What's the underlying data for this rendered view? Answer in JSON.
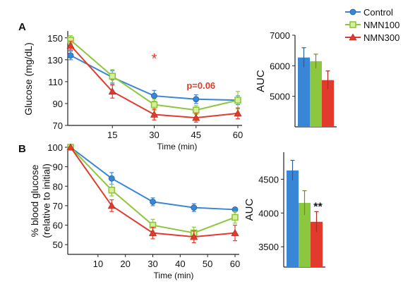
{
  "legend": [
    {
      "label": "Control",
      "color": "#3a86d6",
      "marker": "circle"
    },
    {
      "label": "NMN100",
      "color": "#8dc63f",
      "marker": "square"
    },
    {
      "label": "NMN300",
      "color": "#e23b2e",
      "marker": "triangle"
    }
  ],
  "chart_data": [
    {
      "type": "line",
      "panel_label": "A",
      "xlabel": "Time (min)",
      "ylabel": "Glucose (mg/dL)",
      "x": [
        0,
        15,
        30,
        45,
        60
      ],
      "x_ticks": [
        15,
        30,
        45,
        60
      ],
      "ylim": [
        70,
        155
      ],
      "y_ticks": [
        70,
        90,
        110,
        130,
        150
      ],
      "series": [
        {
          "name": "Control",
          "values": [
            134,
            114,
            97,
            94,
            93
          ],
          "errors": [
            4,
            6,
            5,
            4,
            4
          ]
        },
        {
          "name": "NMN100",
          "values": [
            148,
            115,
            89,
            84,
            93
          ],
          "errors": [
            4,
            6,
            5,
            4,
            8
          ]
        },
        {
          "name": "NMN300",
          "values": [
            143,
            101,
            80,
            77,
            81
          ],
          "errors": [
            4,
            6,
            5,
            4,
            5
          ]
        }
      ],
      "annotations": [
        {
          "text": "*",
          "color": "#e23b2e",
          "at_x": 30
        },
        {
          "text": "p=0.06",
          "color": "#e23b2e",
          "at_x": 45
        }
      ]
    },
    {
      "type": "bar",
      "ylabel": "AUC",
      "ylim": [
        4000,
        7000
      ],
      "y_ticks": [
        5000,
        6000,
        7000
      ],
      "categories": [
        "Control",
        "NMN100",
        "NMN300"
      ],
      "values": [
        6270,
        6150,
        5530
      ],
      "errors": [
        320,
        230,
        300
      ]
    },
    {
      "type": "line",
      "panel_label": "B",
      "xlabel": "Time (min)",
      "ylabel": "% blood glucose (relative to initial)",
      "x": [
        0,
        15,
        30,
        45,
        60
      ],
      "x_ticks": [
        10,
        20,
        30,
        40,
        50,
        60
      ],
      "ylim": [
        45,
        100
      ],
      "y_ticks": [
        50,
        60,
        70,
        80,
        90,
        100
      ],
      "series": [
        {
          "name": "Control",
          "values": [
            100,
            84,
            72,
            69,
            68
          ],
          "errors": [
            0,
            3,
            2,
            2,
            1
          ]
        },
        {
          "name": "NMN100",
          "values": [
            100,
            78,
            60,
            56,
            64
          ],
          "errors": [
            0,
            3,
            3,
            3,
            3
          ]
        },
        {
          "name": "NMN300",
          "values": [
            100,
            70,
            56,
            54,
            56
          ],
          "errors": [
            0,
            3,
            3,
            3,
            4
          ]
        }
      ]
    },
    {
      "type": "bar",
      "ylabel": "AUC",
      "ylim": [
        3200,
        4900
      ],
      "y_ticks": [
        3500,
        4000,
        4500
      ],
      "categories": [
        "Control",
        "NMN100",
        "NMN300"
      ],
      "values": [
        4630,
        4150,
        3870
      ],
      "errors": [
        150,
        180,
        150
      ],
      "annotations": [
        {
          "text": "**",
          "color": "#111111",
          "at_category": "NMN300"
        }
      ]
    }
  ]
}
